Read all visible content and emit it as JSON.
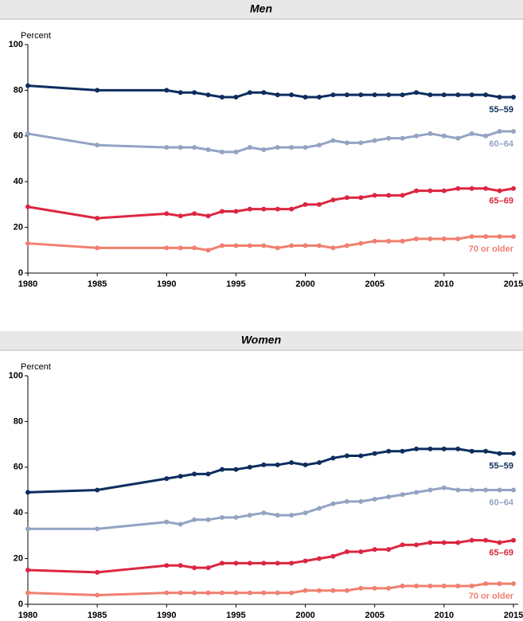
{
  "chart_data": [
    {
      "type": "line",
      "title": "Men",
      "ylabel": "Percent",
      "x": [
        1980,
        1985,
        1990,
        1991,
        1992,
        1993,
        1994,
        1995,
        1996,
        1997,
        1998,
        1999,
        2000,
        2001,
        2002,
        2003,
        2004,
        2005,
        2006,
        2007,
        2008,
        2009,
        2010,
        2011,
        2012,
        2013,
        2014,
        2015
      ],
      "series": [
        {
          "name": "55–59",
          "color": "#0d2d5e",
          "values": [
            82,
            80,
            80,
            79,
            79,
            78,
            77,
            77,
            79,
            79,
            78,
            78,
            77,
            77,
            78,
            78,
            78,
            78,
            78,
            78,
            79,
            78,
            78,
            78,
            78,
            78,
            77,
            77
          ]
        },
        {
          "name": "60–64",
          "color": "#94a3c4",
          "values": [
            61,
            56,
            55,
            55,
            55,
            54,
            53,
            53,
            55,
            54,
            55,
            55,
            55,
            56,
            58,
            57,
            57,
            58,
            59,
            59,
            60,
            61,
            60,
            59,
            61,
            60,
            62,
            62
          ]
        },
        {
          "name": "65–69",
          "color": "#dc2641",
          "values": [
            29,
            24,
            26,
            25,
            26,
            25,
            27,
            27,
            28,
            28,
            28,
            28,
            30,
            30,
            32,
            33,
            33,
            34,
            34,
            34,
            36,
            36,
            36,
            37,
            37,
            37,
            36,
            37
          ]
        },
        {
          "name": "70 or older",
          "color": "#f08070",
          "values": [
            13,
            11,
            11,
            11,
            11,
            10,
            12,
            12,
            12,
            12,
            11,
            12,
            12,
            12,
            11,
            12,
            13,
            14,
            14,
            14,
            15,
            15,
            15,
            15,
            16,
            16,
            16,
            16
          ]
        }
      ],
      "xlim": [
        1980,
        2015
      ],
      "xticks": [
        1980,
        1985,
        1990,
        1995,
        2000,
        2005,
        2010,
        2015
      ],
      "ylim": [
        0,
        100
      ],
      "yticks": [
        0,
        20,
        40,
        60,
        80,
        100
      ],
      "grid": false
    },
    {
      "type": "line",
      "title": "Women",
      "ylabel": "Percent",
      "x": [
        1980,
        1985,
        1990,
        1991,
        1992,
        1993,
        1994,
        1995,
        1996,
        1997,
        1998,
        1999,
        2000,
        2001,
        2002,
        2003,
        2004,
        2005,
        2006,
        2007,
        2008,
        2009,
        2010,
        2011,
        2012,
        2013,
        2014,
        2015
      ],
      "series": [
        {
          "name": "55–59",
          "color": "#0d2d5e",
          "values": [
            49,
            50,
            55,
            56,
            57,
            57,
            59,
            59,
            60,
            61,
            61,
            62,
            61,
            62,
            64,
            65,
            65,
            66,
            67,
            67,
            68,
            68,
            68,
            68,
            67,
            67,
            66,
            66
          ]
        },
        {
          "name": "60–64",
          "color": "#94a3c4",
          "values": [
            33,
            33,
            36,
            35,
            37,
            37,
            38,
            38,
            39,
            40,
            39,
            39,
            40,
            42,
            44,
            45,
            45,
            46,
            47,
            48,
            49,
            50,
            51,
            50,
            50,
            50,
            50,
            50
          ]
        },
        {
          "name": "65–69",
          "color": "#dc2641",
          "values": [
            15,
            14,
            17,
            17,
            16,
            16,
            18,
            18,
            18,
            18,
            18,
            18,
            19,
            20,
            21,
            23,
            23,
            24,
            24,
            26,
            26,
            27,
            27,
            27,
            28,
            28,
            27,
            28
          ]
        },
        {
          "name": "70 or older",
          "color": "#f08070",
          "values": [
            5,
            4,
            5,
            5,
            5,
            5,
            5,
            5,
            5,
            5,
            5,
            5,
            6,
            6,
            6,
            6,
            7,
            7,
            7,
            8,
            8,
            8,
            8,
            8,
            8,
            9,
            9,
            9
          ]
        }
      ],
      "xlim": [
        1980,
        2015
      ],
      "xticks": [
        1980,
        1985,
        1990,
        1995,
        2000,
        2005,
        2010,
        2015
      ],
      "ylim": [
        0,
        100
      ],
      "yticks": [
        0,
        20,
        40,
        60,
        80,
        100
      ],
      "grid": false
    }
  ]
}
